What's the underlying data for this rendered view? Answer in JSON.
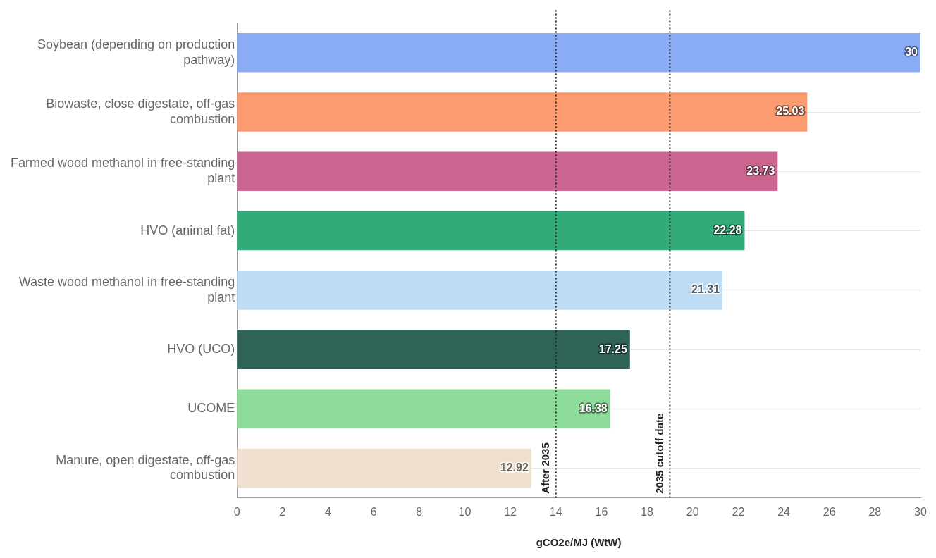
{
  "chart_data": {
    "type": "bar",
    "orientation": "horizontal",
    "xlabel": "gCO2e/MJ (WtW)",
    "categories": [
      "Soybean (depending on production pathway)",
      "Biowaste, close digestate, off-gas combustion",
      "Farmed wood methanol in free-standing plant",
      "HVO (animal fat)",
      "Waste wood methanol in free-standing plant",
      "HVO (UCO)",
      "UCOME",
      "Manure, open digestate, off-gas combustion"
    ],
    "values": [
      30,
      25.03,
      23.73,
      22.28,
      21.31,
      17.25,
      16.38,
      12.92
    ],
    "colors": [
      "#8aacf5",
      "#fc9a70",
      "#cc6490",
      "#33aa7a",
      "#bfdcf5",
      "#2f6457",
      "#8ddc9a",
      "#f0e0d0"
    ],
    "xlim": [
      0,
      30
    ],
    "xticks": [
      0,
      2,
      4,
      6,
      8,
      10,
      12,
      14,
      16,
      18,
      20,
      22,
      24,
      26,
      28,
      30
    ],
    "grid": "y",
    "legend": false,
    "data_labels": true,
    "ref_lines": [
      {
        "axis": "x",
        "value": 14,
        "label": "After 2035",
        "line_style": "dotted"
      },
      {
        "axis": "x",
        "value": 19,
        "label": "2035 cutoff date",
        "line_style": "dotted"
      }
    ]
  }
}
